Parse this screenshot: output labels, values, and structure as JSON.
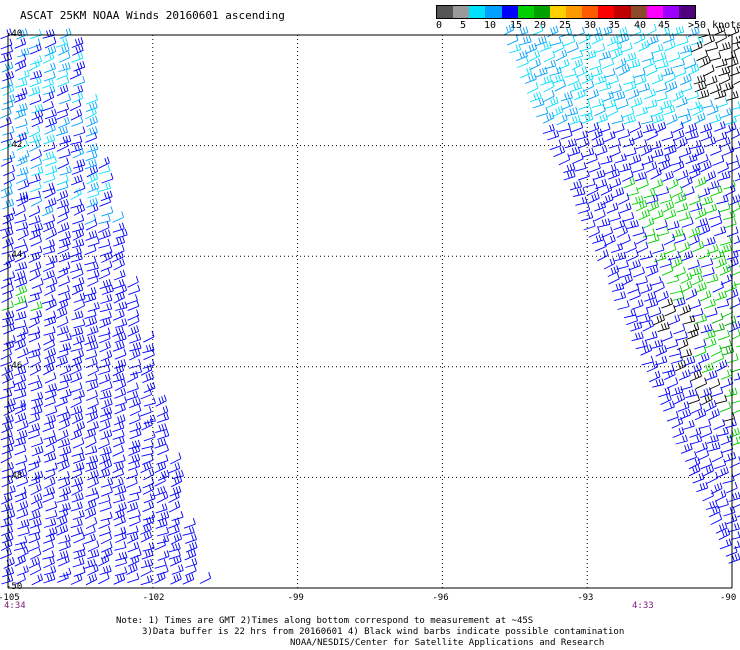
{
  "title": "ASCAT 25KM NOAA Winds 20160601 ascending",
  "speed_scale": {
    "colors": [
      "#555555",
      "#9a9a9a",
      "#00e0ff",
      "#00a0ff",
      "#0000ff",
      "#00d000",
      "#00a000",
      "#ffd000",
      "#ff9900",
      "#ff5a00",
      "#ff0000",
      "#c00000",
      "#8b4a2a",
      "#ff00ff",
      "#9b00ff",
      "#50007f"
    ],
    "labels": [
      "0",
      "5",
      "10",
      "15",
      "20",
      "25",
      "30",
      "35",
      "40",
      "45",
      ">50 knots"
    ]
  },
  "axes": {
    "lat_labels": [
      "-40",
      "-42",
      "-44",
      "-46",
      "-48",
      "-50"
    ],
    "lon_labels": [
      "-105",
      "-102",
      "-99",
      "-96",
      "-93",
      "-90"
    ],
    "lat_range": [
      -50,
      -40
    ],
    "lon_range": [
      -105,
      -90
    ]
  },
  "pass_times": [
    "4:34",
    "4:33"
  ],
  "notes": [
    "Note: 1) Times are GMT 2)Times along bottom correspond to measurement at ~45S",
    "3)Data buffer is 22 hrs from 20160601 4) Black wind barbs indicate possible contamination",
    "NOAA/NESDIS/Center for Satellite Applications and Research"
  ]
}
